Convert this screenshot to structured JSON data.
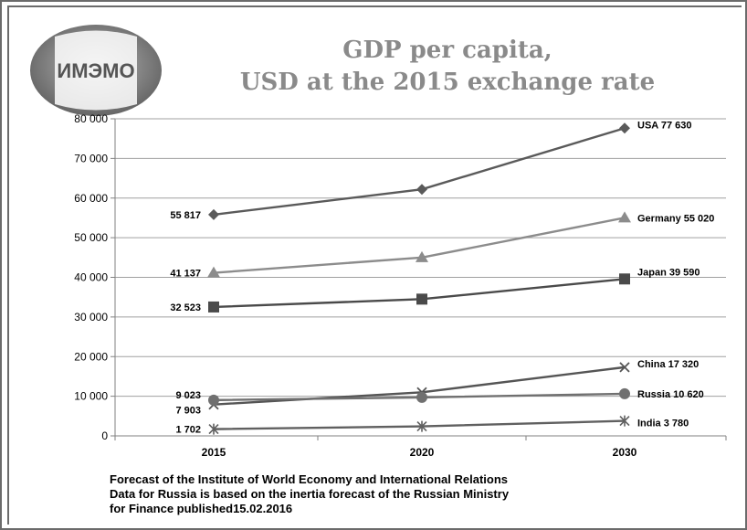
{
  "logo": {
    "text": "ИМЭМО",
    "icon": "imemo-globe-logo-icon"
  },
  "title_line1": "GDP per capita,",
  "title_line2": "USD at the 2015 exchange rate",
  "chart_data": {
    "type": "line",
    "title": "GDP per capita, USD at the 2015 exchange rate",
    "categories": [
      "2015",
      "2020",
      "2030"
    ],
    "y_ticks": [
      "0",
      "10 000",
      "20 000",
      "30 000",
      "40 000",
      "50 000",
      "60 000",
      "70 000",
      "80 000"
    ],
    "ylim": [
      0,
      80000
    ],
    "grid": true,
    "series": [
      {
        "name": "USA",
        "values": [
          55817,
          62200,
          77630
        ],
        "marker": "diamond",
        "color": "#5a5a5a",
        "start_label": "55 817",
        "end_label": "USA 77 630"
      },
      {
        "name": "Germany",
        "values": [
          41137,
          45000,
          55020
        ],
        "marker": "triangle",
        "color": "#8c8c8c",
        "start_label": "41 137",
        "end_label": "Germany 55 020"
      },
      {
        "name": "Japan",
        "values": [
          32523,
          34500,
          39590
        ],
        "marker": "square",
        "color": "#4a4a4a",
        "start_label": "32 523",
        "end_label": "Japan 39  590"
      },
      {
        "name": "China",
        "values": [
          7903,
          11000,
          17320
        ],
        "marker": "x",
        "color": "#555555",
        "start_label": "7 903",
        "end_label": "China 17 320"
      },
      {
        "name": "Russia",
        "values": [
          9023,
          9700,
          10620
        ],
        "marker": "circle",
        "color": "#707070",
        "start_label": "9 023",
        "end_label": "Russia 10 620"
      },
      {
        "name": "India",
        "values": [
          1702,
          2400,
          3780
        ],
        "marker": "star",
        "color": "#606060",
        "start_label": "1 702",
        "end_label": "India 3 780"
      }
    ]
  },
  "footer": {
    "line1": "Forecast of the Institute of World Economy and International Relations",
    "line2": "Data for Russia is based on the inertia forecast of the Russian Ministry",
    "line3": "for Finance published15.02.2016"
  }
}
